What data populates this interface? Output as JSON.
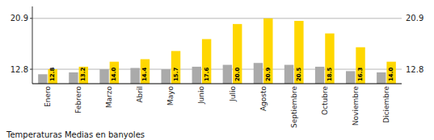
{
  "chart_data": {
    "type": "bar",
    "title": "Temperaturas Medias en banyoles",
    "categories": [
      "Enero",
      "Febrero",
      "Marzo",
      "Abril",
      "Mayo",
      "Junio",
      "Julio",
      "Agosto",
      "Septiembre",
      "Octubre",
      "Noviembre",
      "Diciembre"
    ],
    "series": [
      {
        "color": "#AAAAAA",
        "values": [
          12.0,
          12.3,
          12.8,
          13.0,
          12.8,
          13.2,
          13.5,
          13.8,
          13.5,
          13.2,
          12.5,
          12.3
        ]
      },
      {
        "color": "#FFD700",
        "values": [
          12.8,
          13.2,
          14.0,
          14.4,
          15.7,
          17.6,
          20.0,
          20.9,
          20.5,
          18.5,
          16.3,
          14.0
        ],
        "data_labels": true,
        "value_labels": [
          "12.8",
          "13.2",
          "14.0",
          "14.4",
          "15.7",
          "17.6",
          "20.0",
          "20.9",
          "20.5",
          "18.5",
          "16.3",
          "14.0"
        ]
      }
    ],
    "ylim": [
      10.5,
      22.8
    ],
    "yticks": [
      12.8,
      20.9
    ],
    "y2lim": [
      10.5,
      22.8
    ],
    "y2ticks": [
      12.8,
      20.9
    ],
    "grid": true
  }
}
